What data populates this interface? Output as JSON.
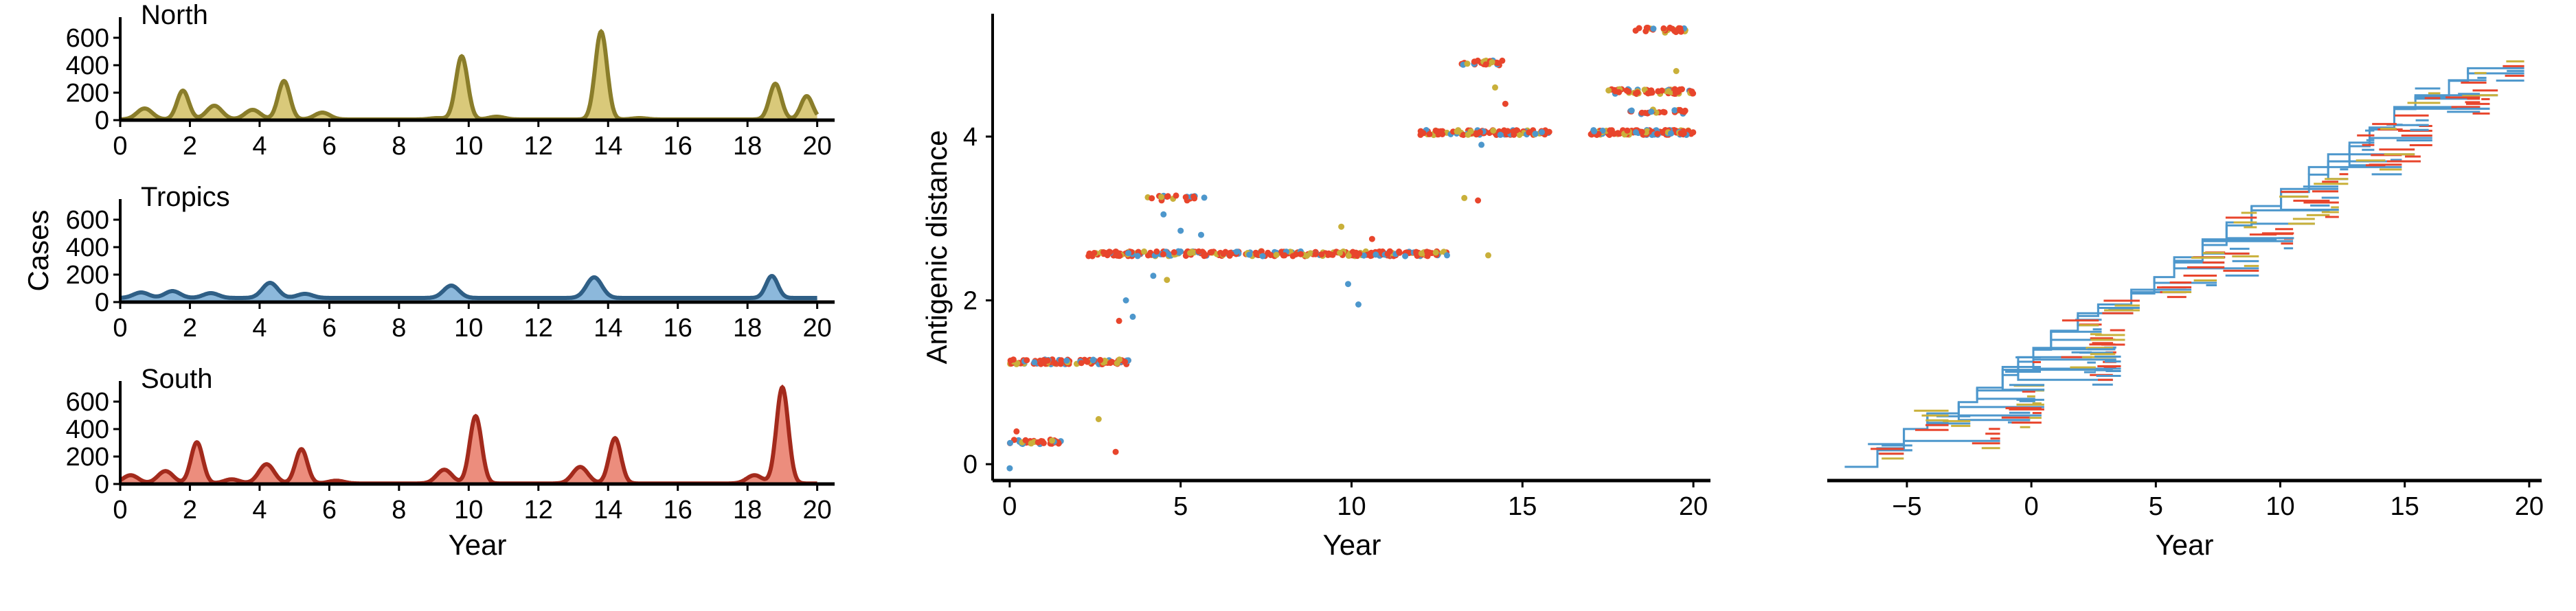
{
  "colors": {
    "north": "#8a7d2a",
    "north_fill": "#d9c97a",
    "tropics": "#2f5f86",
    "tropics_fill": "#8cb8db",
    "south": "#a32a1c",
    "south_fill": "#ec8d7d",
    "red": "#e8452c",
    "blue": "#4d97cc",
    "gold": "#c9b03a",
    "axis": "#000000"
  },
  "chart_data": [
    {
      "type": "area",
      "panel": "incidence",
      "ylabel": "Cases",
      "xlabel": "Year",
      "xlim": [
        0,
        20.5
      ],
      "ylim": [
        0,
        750
      ],
      "xticks": [
        "0",
        "2",
        "4",
        "6",
        "8",
        "10",
        "12",
        "14",
        "16",
        "18",
        "20"
      ],
      "yticks": [
        "0",
        "200",
        "400",
        "600"
      ],
      "series": [
        {
          "name": "North",
          "color_key": "north",
          "baseline": 5,
          "peaks": [
            {
              "x": 0.7,
              "y": 80
            },
            {
              "x": 1.8,
              "y": 210
            },
            {
              "x": 2.7,
              "y": 100
            },
            {
              "x": 3.8,
              "y": 70
            },
            {
              "x": 4.7,
              "y": 280
            },
            {
              "x": 5.8,
              "y": 50
            },
            {
              "x": 9.1,
              "y": 10
            },
            {
              "x": 9.8,
              "y": 460
            },
            {
              "x": 10.8,
              "y": 20
            },
            {
              "x": 13.8,
              "y": 640
            },
            {
              "x": 14.9,
              "y": 10
            },
            {
              "x": 18.8,
              "y": 260
            },
            {
              "x": 19.7,
              "y": 170
            }
          ]
        },
        {
          "name": "Tropics",
          "color_key": "tropics",
          "baseline": 30,
          "peaks": [
            {
              "x": 0.6,
              "y": 40
            },
            {
              "x": 1.5,
              "y": 50
            },
            {
              "x": 2.6,
              "y": 35
            },
            {
              "x": 4.3,
              "y": 110
            },
            {
              "x": 5.3,
              "y": 30
            },
            {
              "x": 9.5,
              "y": 90
            },
            {
              "x": 13.6,
              "y": 150
            },
            {
              "x": 18.7,
              "y": 160
            }
          ]
        },
        {
          "name": "South",
          "color_key": "south",
          "baseline": 4,
          "peaks": [
            {
              "x": 0.3,
              "y": 60
            },
            {
              "x": 1.3,
              "y": 90
            },
            {
              "x": 2.2,
              "y": 300
            },
            {
              "x": 3.2,
              "y": 30
            },
            {
              "x": 4.2,
              "y": 140
            },
            {
              "x": 5.2,
              "y": 250
            },
            {
              "x": 6.2,
              "y": 20
            },
            {
              "x": 9.3,
              "y": 100
            },
            {
              "x": 10.2,
              "y": 490
            },
            {
              "x": 13.2,
              "y": 120
            },
            {
              "x": 14.2,
              "y": 330
            },
            {
              "x": 18.2,
              "y": 60
            },
            {
              "x": 19.0,
              "y": 700
            }
          ]
        }
      ]
    },
    {
      "type": "scatter",
      "panel": "antigenic",
      "xlabel": "Year",
      "ylabel": "Antigenic distance",
      "xlim": [
        -0.5,
        20.5
      ],
      "ylim": [
        -0.2,
        5.5
      ],
      "xticks": [
        "0",
        "5",
        "10",
        "15",
        "20"
      ],
      "yticks": [
        "0",
        "2",
        "4"
      ],
      "clusters": [
        {
          "x0": 0.0,
          "x1": 1.5,
          "y": 0.27,
          "n": 40
        },
        {
          "x0": 0.0,
          "x1": 3.5,
          "y": 1.25,
          "n": 120
        },
        {
          "x0": 2.3,
          "x1": 12.8,
          "y": 2.57,
          "n": 300
        },
        {
          "x0": 4.0,
          "x1": 5.7,
          "y": 3.25,
          "n": 20
        },
        {
          "x0": 12.0,
          "x1": 15.8,
          "y": 4.05,
          "n": 110
        },
        {
          "x0": 13.2,
          "x1": 14.5,
          "y": 4.9,
          "n": 25
        },
        {
          "x0": 17.0,
          "x1": 20.0,
          "y": 4.05,
          "n": 130
        },
        {
          "x0": 17.5,
          "x1": 20.0,
          "y": 4.55,
          "n": 60
        },
        {
          "x0": 18.2,
          "x1": 19.8,
          "y": 5.3,
          "n": 25
        },
        {
          "x0": 18.0,
          "x1": 19.8,
          "y": 4.3,
          "n": 25
        }
      ],
      "scattered_points": [
        {
          "x": 0.0,
          "y": -0.05,
          "c": "blue"
        },
        {
          "x": 0.2,
          "y": 0.4,
          "c": "red"
        },
        {
          "x": 3.1,
          "y": 0.15,
          "c": "red"
        },
        {
          "x": 2.6,
          "y": 0.55,
          "c": "gold"
        },
        {
          "x": 3.2,
          "y": 1.75,
          "c": "red"
        },
        {
          "x": 3.4,
          "y": 2.0,
          "c": "blue"
        },
        {
          "x": 3.6,
          "y": 1.8,
          "c": "blue"
        },
        {
          "x": 4.2,
          "y": 2.3,
          "c": "blue"
        },
        {
          "x": 4.6,
          "y": 2.25,
          "c": "gold"
        },
        {
          "x": 5.0,
          "y": 2.85,
          "c": "blue"
        },
        {
          "x": 5.6,
          "y": 2.8,
          "c": "blue"
        },
        {
          "x": 4.5,
          "y": 3.05,
          "c": "blue"
        },
        {
          "x": 9.7,
          "y": 2.9,
          "c": "gold"
        },
        {
          "x": 9.9,
          "y": 2.2,
          "c": "blue"
        },
        {
          "x": 10.2,
          "y": 1.95,
          "c": "blue"
        },
        {
          "x": 10.6,
          "y": 2.75,
          "c": "red"
        },
        {
          "x": 13.3,
          "y": 3.25,
          "c": "gold"
        },
        {
          "x": 13.7,
          "y": 3.22,
          "c": "red"
        },
        {
          "x": 14.0,
          "y": 2.55,
          "c": "gold"
        },
        {
          "x": 13.8,
          "y": 3.9,
          "c": "blue"
        },
        {
          "x": 14.2,
          "y": 4.6,
          "c": "gold"
        },
        {
          "x": 19.5,
          "y": 4.8,
          "c": "gold"
        },
        {
          "x": 14.5,
          "y": 4.4,
          "c": "red"
        }
      ]
    },
    {
      "type": "tree",
      "panel": "phylogeny",
      "xlabel": "Year",
      "xlim": [
        -8.2,
        20.5
      ],
      "xticks": [
        "−5",
        "0",
        "5",
        "10",
        "15",
        "20"
      ],
      "xtick_values": [
        -5,
        0,
        5,
        10,
        15,
        20
      ],
      "root_x": -7.5,
      "tip_x_max": 19.8
    }
  ]
}
